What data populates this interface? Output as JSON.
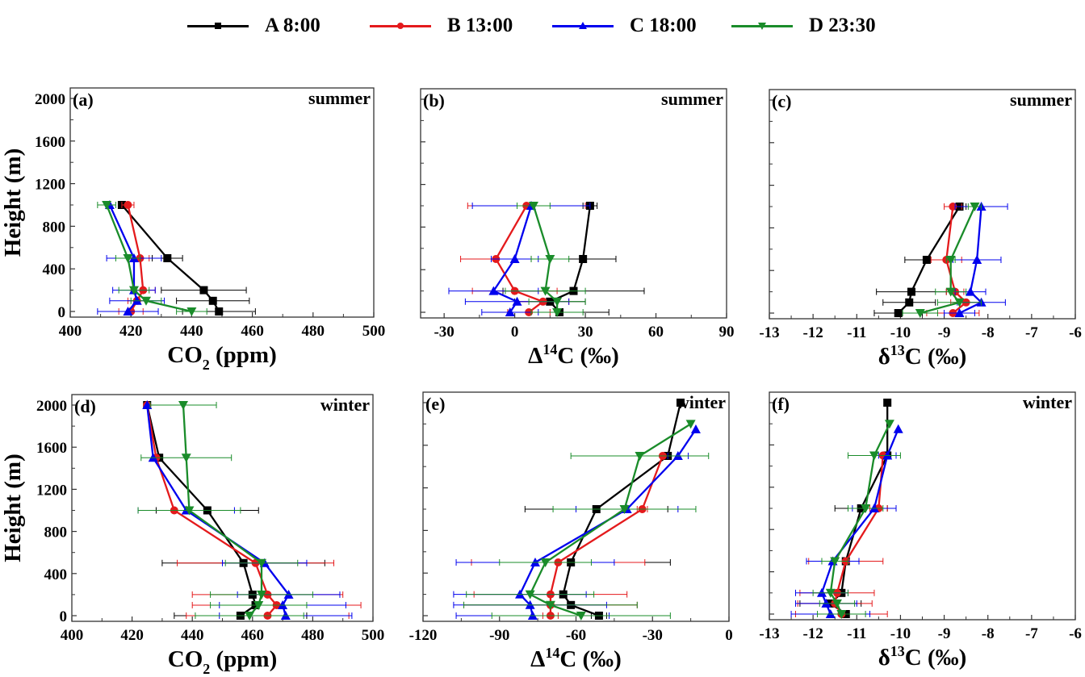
{
  "legend": [
    {
      "label": "A 8:00",
      "color": "#000000",
      "marker": "square"
    },
    {
      "label": "B 13:00",
      "color": "#e41a1c",
      "marker": "circle"
    },
    {
      "label": "C 18:00",
      "color": "#0000ee",
      "marker": "triangle-up"
    },
    {
      "label": "D 23:30",
      "color": "#1a8c2a",
      "marker": "triangle-down"
    }
  ],
  "chart_data": [
    {
      "id": "a",
      "type": "line",
      "panel_label": "(a)",
      "season": "summer",
      "xlabel": "CO2 (ppm)",
      "xlabel_main": "CO",
      "xlabel_sub": "2",
      "xlabel_sup": "",
      "xlabel_tail": " (ppm)",
      "ylabel": "Height (m)",
      "xlim": [
        400,
        500
      ],
      "ylim": [
        -60,
        2100
      ],
      "xticks": [
        400,
        420,
        440,
        460,
        480,
        500
      ],
      "xticklabels": [
        "400",
        "420",
        "440",
        "460",
        "480",
        "500"
      ],
      "yticks": [
        0,
        400,
        800,
        1200,
        1600,
        2000
      ],
      "yticklabels": [
        "0",
        "400",
        "800",
        "1200",
        "1600",
        "2000"
      ],
      "series": [
        {
          "name": "A 8:00",
          "points": [
            [
              449,
              0,
              12
            ],
            [
              447,
              100,
              12
            ],
            [
              444,
              200,
              14
            ],
            [
              432,
              500,
              5
            ],
            [
              417,
              1000,
              1
            ]
          ]
        },
        {
          "name": "B 13:00",
          "points": [
            [
              420,
              0,
              4
            ],
            [
              422,
              100,
              3
            ],
            [
              424,
              200,
              4
            ],
            [
              423,
              500,
              3
            ],
            [
              419,
              1000,
              2
            ]
          ]
        },
        {
          "name": "C 18:00",
          "points": [
            [
              419,
              0,
              10
            ],
            [
              422,
              100,
              9
            ],
            [
              421,
              200,
              7
            ],
            [
              421,
              500,
              9
            ],
            [
              413,
              1000,
              1
            ]
          ]
        },
        {
          "name": "D 23:30",
          "points": [
            [
              440,
              0,
              5
            ],
            [
              425,
              100,
              5
            ],
            [
              421,
              200,
              5
            ],
            [
              419,
              500,
              4
            ],
            [
              412,
              1000,
              3
            ]
          ]
        }
      ]
    },
    {
      "id": "b",
      "type": "line",
      "panel_label": "(b)",
      "season": "summer",
      "xlabel": "Δ14C (‰)",
      "xlabel_main": "Δ",
      "xlabel_sub": "",
      "xlabel_sup": "14",
      "xlabel_tail": "C (‰)",
      "ylabel": "",
      "xlim": [
        -40,
        90
      ],
      "ylim": [
        -60,
        2100
      ],
      "xticks": [
        -30,
        0,
        30,
        60,
        90
      ],
      "xticklabels": [
        "-30",
        "0",
        "30",
        "60",
        "90"
      ],
      "yticks": [
        0,
        400,
        800,
        1200,
        1600,
        2000
      ],
      "yticklabels": [],
      "series": [
        {
          "name": "A 8:00",
          "points": [
            [
              19,
              0,
              21
            ],
            [
              15,
              100,
              15
            ],
            [
              25,
              200,
              30
            ],
            [
              29,
              500,
              14
            ],
            [
              32,
              1000,
              3
            ]
          ]
        },
        {
          "name": "B 13:00",
          "points": [
            [
              6,
              0,
              9
            ],
            [
              12,
              100,
              11
            ],
            [
              0,
              200,
              18
            ],
            [
              -8,
              500,
              15
            ],
            [
              5,
              1000,
              25
            ]
          ]
        },
        {
          "name": "C 18:00",
          "points": [
            [
              -2,
              0,
              12
            ],
            [
              1,
              100,
              22
            ],
            [
              -9,
              200,
              19
            ],
            [
              0,
              500,
              10
            ],
            [
              7,
              1000,
              25
            ]
          ]
        },
        {
          "name": "D 23:30",
          "points": [
            [
              18,
              0,
              11
            ],
            [
              18,
              100,
              12
            ],
            [
              13,
              200,
              17
            ],
            [
              15,
              500,
              8
            ],
            [
              8,
              1000,
              7
            ]
          ]
        }
      ]
    },
    {
      "id": "c",
      "type": "line",
      "panel_label": "(c)",
      "season": "summer",
      "xlabel": "δ13C (‰)",
      "xlabel_main": "δ",
      "xlabel_sub": "",
      "xlabel_sup": "13",
      "xlabel_tail": "C (‰)",
      "ylabel": "",
      "xlim": [
        -13,
        -6
      ],
      "ylim": [
        -60,
        2100
      ],
      "xticks": [
        -13,
        -12,
        -11,
        -10,
        -9,
        -8,
        -7,
        -6
      ],
      "xticklabels": [
        "-13",
        "-12",
        "-11",
        "-10",
        "-9",
        "-8",
        "-7",
        "-6"
      ],
      "yticks": [
        0,
        400,
        800,
        1200,
        1600,
        2000
      ],
      "yticklabels": [],
      "series": [
        {
          "name": "A 8:00",
          "points": [
            [
              -10.05,
              0,
              0.55
            ],
            [
              -9.8,
              100,
              0.6
            ],
            [
              -9.75,
              200,
              0.8
            ],
            [
              -9.4,
              500,
              0.5
            ],
            [
              -8.65,
              1000,
              0.15
            ]
          ]
        },
        {
          "name": "B 13:00",
          "points": [
            [
              -8.8,
              0,
              0.6
            ],
            [
              -8.5,
              100,
              0.35
            ],
            [
              -8.75,
              200,
              0.2
            ],
            [
              -8.95,
              500,
              0.35
            ],
            [
              -8.8,
              1000,
              0.2
            ]
          ]
        },
        {
          "name": "C 18:00",
          "points": [
            [
              -8.65,
              0,
              0.35
            ],
            [
              -8.15,
              100,
              0.55
            ],
            [
              -8.4,
              200,
              0.35
            ],
            [
              -8.25,
              500,
              0.55
            ],
            [
              -8.15,
              1000,
              0.6
            ]
          ]
        },
        {
          "name": "D 23:30",
          "points": [
            [
              -9.55,
              0,
              0.4
            ],
            [
              -8.65,
              100,
              0.5
            ],
            [
              -8.85,
              200,
              0.35
            ],
            [
              -8.85,
              500,
              0.1
            ],
            [
              -8.3,
              1000,
              0.15
            ]
          ]
        }
      ]
    },
    {
      "id": "d",
      "type": "line",
      "panel_label": "(d)",
      "season": "winter",
      "xlabel": "CO2 (ppm)",
      "xlabel_main": "CO",
      "xlabel_sub": "2",
      "xlabel_sup": "",
      "xlabel_tail": " (ppm)",
      "ylabel": "Height (m)",
      "xlim": [
        400,
        500
      ],
      "ylim": [
        -60,
        2100
      ],
      "xticks": [
        400,
        420,
        440,
        460,
        480,
        500
      ],
      "xticklabels": [
        "400",
        "420",
        "440",
        "460",
        "480",
        "500"
      ],
      "yticks": [
        0,
        400,
        800,
        1200,
        1600,
        2000
      ],
      "yticklabels": [
        "0",
        "400",
        "800",
        "1200",
        "1600",
        "2000"
      ],
      "series": [
        {
          "name": "A 8:00",
          "points": [
            [
              456,
              0,
              22
            ],
            [
              461,
              100,
              1
            ],
            [
              460,
              200,
              1
            ],
            [
              457,
              500,
              27
            ],
            [
              445,
              1000,
              17
            ],
            [
              429,
              1500,
              1
            ],
            [
              425,
              2000,
              1
            ]
          ]
        },
        {
          "name": "B 13:00",
          "points": [
            [
              465,
              0,
              27
            ],
            [
              468,
              100,
              28
            ],
            [
              465,
              200,
              25
            ],
            [
              461,
              500,
              26
            ],
            [
              434,
              1000,
              1
            ],
            [
              428,
              1500,
              1
            ],
            [
              425,
              2000,
              1
            ]
          ]
        },
        {
          "name": "C 18:00",
          "points": [
            [
              471,
              0,
              22
            ],
            [
              470,
              100,
              21
            ],
            [
              472,
              200,
              17
            ],
            [
              464,
              500,
              14
            ],
            [
              438,
              1000,
              16
            ],
            [
              427,
              1500,
              1
            ],
            [
              425,
              2000,
              1
            ]
          ]
        },
        {
          "name": "D 23:30",
          "points": [
            [
              459,
              0,
              18
            ],
            [
              462,
              100,
              16
            ],
            [
              463,
              200,
              17
            ],
            [
              463,
              500,
              12
            ],
            [
              439,
              1000,
              17
            ],
            [
              438,
              1500,
              15
            ],
            [
              437,
              2000,
              11
            ]
          ]
        }
      ]
    },
    {
      "id": "e",
      "type": "line",
      "panel_label": "(e)",
      "season": "winter",
      "xlabel": "Δ14C (‰)",
      "xlabel_main": "Δ",
      "xlabel_sub": "",
      "xlabel_sup": "14",
      "xlabel_tail": "C (‰)",
      "ylabel": "",
      "xlim": [
        -120,
        0
      ],
      "ylim": [
        -60,
        2100
      ],
      "xticks": [
        -120,
        -90,
        -60,
        -30,
        0
      ],
      "xticklabels": [
        "-120",
        "-90",
        "-60",
        "-30",
        "0"
      ],
      "yticks": [
        0,
        400,
        800,
        1200,
        1600,
        2000
      ],
      "yticklabels": [],
      "series": [
        {
          "name": "A 8:00",
          "points": [
            [
              -51,
              0,
              3
            ],
            [
              -62,
              100,
              1
            ],
            [
              -65,
              200,
              1
            ],
            [
              -62,
              500,
              39
            ],
            [
              -52,
              1000,
              28
            ],
            [
              -24,
              1500,
              1
            ],
            [
              -19,
              2000,
              1
            ]
          ]
        },
        {
          "name": "B 13:00",
          "points": [
            [
              -70,
              0,
              3
            ],
            [
              -70,
              100,
              34
            ],
            [
              -70,
              200,
              30
            ],
            [
              -67,
              500,
              34
            ],
            [
              -34,
              1000,
              2
            ],
            [
              -26,
              1500,
              1
            ]
          ]
        },
        {
          "name": "C 18:00",
          "points": [
            [
              -77,
              0,
              30
            ],
            [
              -78,
              100,
              30
            ],
            [
              -82,
              200,
              26
            ],
            [
              -76,
              500,
              31
            ],
            [
              -40,
              1000,
              20
            ],
            [
              -20,
              1500,
              4
            ],
            [
              -13,
              1750,
              1
            ]
          ]
        },
        {
          "name": "D 23:30",
          "points": [
            [
              -58,
              0,
              35
            ],
            [
              -70,
              100,
              34
            ],
            [
              -78,
              200,
              25
            ],
            [
              -72,
              500,
              18
            ],
            [
              -41,
              1000,
              28
            ],
            [
              -35,
              1500,
              27
            ],
            [
              -15,
              1800,
              1
            ]
          ]
        }
      ]
    },
    {
      "id": "f",
      "type": "line",
      "panel_label": "(f)",
      "season": "winter",
      "xlabel": "δ13C (‰)",
      "xlabel_main": "δ",
      "xlabel_sub": "",
      "xlabel_sup": "13",
      "xlabel_tail": "C (‰)",
      "ylabel": "",
      "xlim": [
        -13,
        -6
      ],
      "ylim": [
        -60,
        2100
      ],
      "xticks": [
        -13,
        -12,
        -11,
        -10,
        -9,
        -8,
        -7,
        -6
      ],
      "xticklabels": [
        "-13",
        "-12",
        "-11",
        "-10",
        "-9",
        "-8",
        "-7",
        "-6"
      ],
      "yticks": [
        0,
        400,
        800,
        1200,
        1600,
        2000
      ],
      "yticklabels": [],
      "series": [
        {
          "name": "A 8:00",
          "points": [
            [
              -11.25,
              0,
              0.05
            ],
            [
              -11.6,
              100,
              0.7
            ],
            [
              -11.35,
              200,
              0.05
            ],
            [
              -11.25,
              500,
              0.05
            ],
            [
              -10.9,
              1000,
              0.6
            ],
            [
              -10.3,
              1500,
              0.05
            ],
            [
              -10.3,
              2000,
              0.05
            ]
          ]
        },
        {
          "name": "B 13:00",
          "points": [
            [
              -11.35,
              0,
              1.05
            ],
            [
              -11.5,
              100,
              0.85
            ],
            [
              -11.45,
              200,
              0.85
            ],
            [
              -11.25,
              500,
              0.85
            ],
            [
              -10.5,
              1000,
              0.2
            ],
            [
              -10.4,
              1500,
              0.05
            ]
          ]
        },
        {
          "name": "C 18:00",
          "points": [
            [
              -11.6,
              0,
              0.9
            ],
            [
              -11.7,
              100,
              0.7
            ],
            [
              -11.8,
              200,
              0.6
            ],
            [
              -11.55,
              500,
              0.6
            ],
            [
              -10.6,
              1000,
              0.5
            ],
            [
              -10.3,
              1500,
              0.2
            ],
            [
              -10.05,
              1750,
              0.05
            ]
          ]
        },
        {
          "name": "D 23:30",
          "points": [
            [
              -11.35,
              0,
              0.55
            ],
            [
              -11.45,
              100,
              0.4
            ],
            [
              -11.6,
              200,
              0.4
            ],
            [
              -11.5,
              500,
              0.3
            ],
            [
              -10.8,
              1000,
              0.4
            ],
            [
              -10.6,
              1500,
              0.6
            ],
            [
              -10.25,
              1800,
              0.05
            ]
          ]
        }
      ]
    }
  ]
}
